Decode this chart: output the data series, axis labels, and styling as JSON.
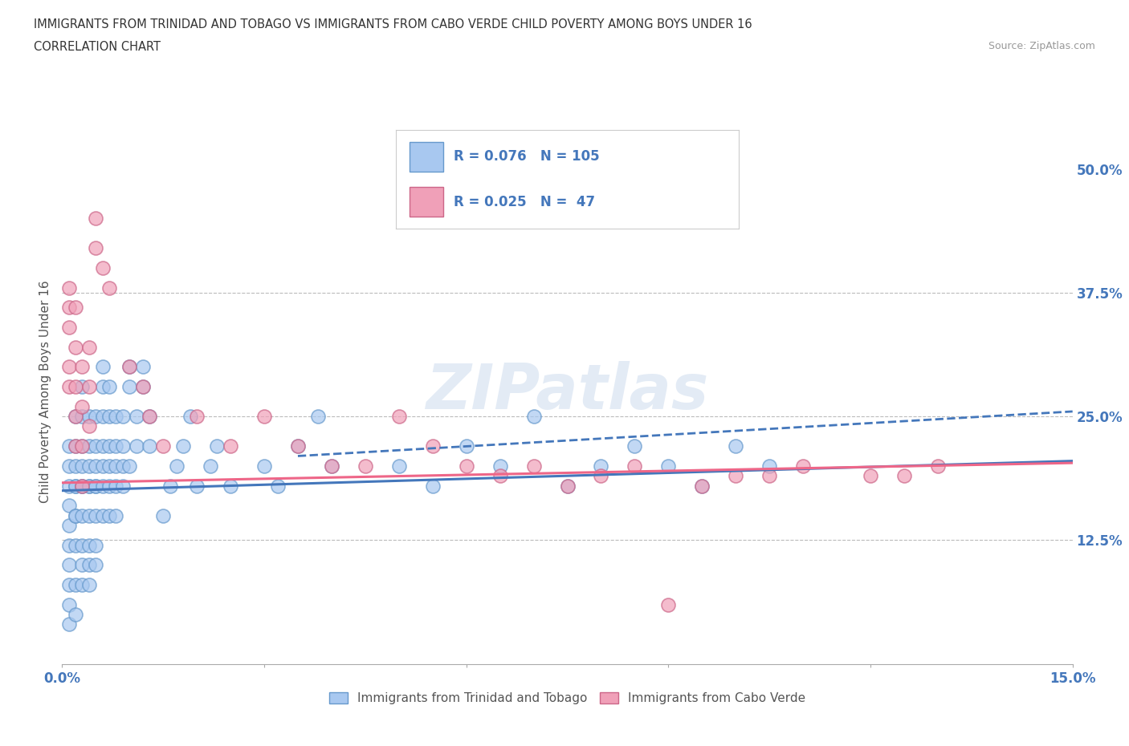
{
  "title_line1": "IMMIGRANTS FROM TRINIDAD AND TOBAGO VS IMMIGRANTS FROM CABO VERDE CHILD POVERTY AMONG BOYS UNDER 16",
  "title_line2": "CORRELATION CHART",
  "source_text": "Source: ZipAtlas.com",
  "ylabel": "Child Poverty Among Boys Under 16",
  "xlim": [
    0.0,
    0.15
  ],
  "ylim": [
    0.0,
    0.55
  ],
  "color_tt": "#A8C8F0",
  "color_tt_edge": "#6699CC",
  "color_cv": "#F0A0B8",
  "color_cv_edge": "#CC6688",
  "color_tt_line": "#4477BB",
  "color_cv_line": "#EE6688",
  "R_tt": 0.076,
  "N_tt": 105,
  "R_cv": 0.025,
  "N_cv": 47,
  "watermark_text": "ZIPatlas",
  "legend_label_tt": "Immigrants from Trinidad and Tobago",
  "legend_label_cv": "Immigrants from Cabo Verde",
  "background_color": "#FFFFFF",
  "tt_x": [
    0.001,
    0.001,
    0.001,
    0.001,
    0.001,
    0.001,
    0.001,
    0.001,
    0.001,
    0.001,
    0.002,
    0.002,
    0.002,
    0.002,
    0.002,
    0.002,
    0.002,
    0.002,
    0.002,
    0.002,
    0.003,
    0.003,
    0.003,
    0.003,
    0.003,
    0.003,
    0.003,
    0.003,
    0.003,
    0.003,
    0.004,
    0.004,
    0.004,
    0.004,
    0.004,
    0.004,
    0.004,
    0.004,
    0.004,
    0.005,
    0.005,
    0.005,
    0.005,
    0.005,
    0.005,
    0.005,
    0.005,
    0.006,
    0.006,
    0.006,
    0.006,
    0.006,
    0.006,
    0.006,
    0.007,
    0.007,
    0.007,
    0.007,
    0.007,
    0.007,
    0.008,
    0.008,
    0.008,
    0.008,
    0.008,
    0.009,
    0.009,
    0.009,
    0.009,
    0.01,
    0.01,
    0.01,
    0.011,
    0.011,
    0.012,
    0.012,
    0.013,
    0.013,
    0.015,
    0.016,
    0.017,
    0.018,
    0.019,
    0.02,
    0.022,
    0.023,
    0.025,
    0.03,
    0.032,
    0.035,
    0.038,
    0.04,
    0.05,
    0.055,
    0.06,
    0.065,
    0.07,
    0.075,
    0.08,
    0.085,
    0.09,
    0.095,
    0.1,
    0.105
  ],
  "tt_y": [
    0.18,
    0.16,
    0.14,
    0.12,
    0.1,
    0.08,
    0.06,
    0.04,
    0.2,
    0.22,
    0.18,
    0.15,
    0.12,
    0.2,
    0.22,
    0.25,
    0.08,
    0.05,
    0.18,
    0.15,
    0.2,
    0.18,
    0.15,
    0.22,
    0.25,
    0.28,
    0.1,
    0.08,
    0.12,
    0.18,
    0.2,
    0.18,
    0.22,
    0.25,
    0.15,
    0.12,
    0.1,
    0.08,
    0.18,
    0.2,
    0.22,
    0.18,
    0.25,
    0.15,
    0.12,
    0.1,
    0.18,
    0.2,
    0.22,
    0.25,
    0.18,
    0.28,
    0.3,
    0.15,
    0.2,
    0.22,
    0.25,
    0.18,
    0.28,
    0.15,
    0.2,
    0.22,
    0.18,
    0.25,
    0.15,
    0.22,
    0.2,
    0.25,
    0.18,
    0.28,
    0.3,
    0.2,
    0.25,
    0.22,
    0.28,
    0.3,
    0.25,
    0.22,
    0.15,
    0.18,
    0.2,
    0.22,
    0.25,
    0.18,
    0.2,
    0.22,
    0.18,
    0.2,
    0.18,
    0.22,
    0.25,
    0.2,
    0.2,
    0.18,
    0.22,
    0.2,
    0.25,
    0.18,
    0.2,
    0.22,
    0.2,
    0.18,
    0.22,
    0.2
  ],
  "cv_x": [
    0.001,
    0.001,
    0.001,
    0.001,
    0.001,
    0.002,
    0.002,
    0.002,
    0.002,
    0.002,
    0.003,
    0.003,
    0.003,
    0.003,
    0.004,
    0.004,
    0.004,
    0.005,
    0.005,
    0.006,
    0.007,
    0.01,
    0.012,
    0.013,
    0.015,
    0.02,
    0.025,
    0.03,
    0.035,
    0.04,
    0.045,
    0.05,
    0.055,
    0.06,
    0.065,
    0.07,
    0.075,
    0.08,
    0.085,
    0.09,
    0.095,
    0.1,
    0.105,
    0.11,
    0.12,
    0.125,
    0.13
  ],
  "cv_y": [
    0.38,
    0.36,
    0.34,
    0.3,
    0.28,
    0.36,
    0.32,
    0.28,
    0.25,
    0.22,
    0.3,
    0.26,
    0.22,
    0.18,
    0.32,
    0.28,
    0.24,
    0.45,
    0.42,
    0.4,
    0.38,
    0.3,
    0.28,
    0.25,
    0.22,
    0.25,
    0.22,
    0.25,
    0.22,
    0.2,
    0.2,
    0.25,
    0.22,
    0.2,
    0.19,
    0.2,
    0.18,
    0.19,
    0.2,
    0.06,
    0.18,
    0.19,
    0.19,
    0.2,
    0.19,
    0.19,
    0.2
  ]
}
